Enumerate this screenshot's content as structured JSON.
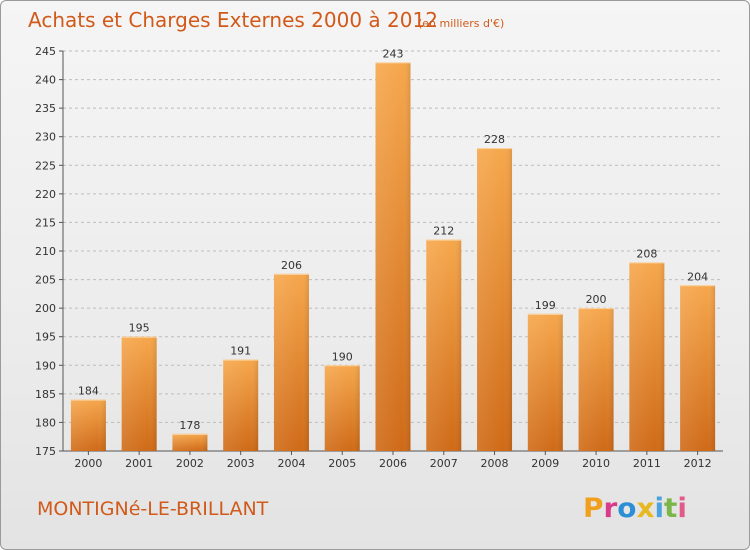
{
  "title": "Achats et Charges Externes 2000 à 2012",
  "subtitle": "(en milliers d'€)",
  "place": "MONTIGNé-LE-BRILLANT",
  "logo": {
    "text": "Proxiti",
    "letters": [
      {
        "ch": "P",
        "color": "#f0a01e"
      },
      {
        "ch": "r",
        "color": "#d93a8a"
      },
      {
        "ch": "o",
        "color": "#2c8fd6"
      },
      {
        "ch": "x",
        "color": "#e8b820"
      },
      {
        "ch": "i",
        "color": "#4aa3df"
      },
      {
        "ch": "t",
        "color": "#7ab648"
      },
      {
        "ch": "i",
        "color": "#e05a8a"
      }
    ]
  },
  "colors": {
    "bar_top": "#f6a74c",
    "bar_bottom": "#cf6a17",
    "accent_text": "#d15a1a",
    "grid": "#bdbdbd"
  },
  "chart_data": {
    "type": "bar",
    "categories": [
      "2000",
      "2001",
      "2002",
      "2003",
      "2004",
      "2005",
      "2006",
      "2007",
      "2008",
      "2009",
      "2010",
      "2011",
      "2012"
    ],
    "values": [
      184,
      195,
      178,
      191,
      206,
      190,
      243,
      212,
      228,
      199,
      200,
      208,
      204
    ],
    "ylim": [
      175,
      245
    ],
    "yticks": [
      175,
      180,
      185,
      190,
      195,
      200,
      205,
      210,
      215,
      220,
      225,
      230,
      235,
      240,
      245
    ],
    "grid": true,
    "grid_style": "dashed-horizontal"
  }
}
